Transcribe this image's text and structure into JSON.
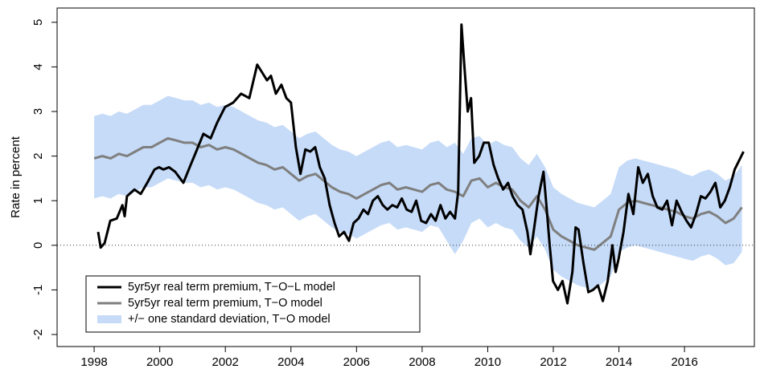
{
  "chart_data": {
    "type": "line",
    "y_label": "Rate in percent",
    "xlim": [
      1996.87,
      2018.13
    ],
    "ylim": [
      -2.27,
      5.32
    ],
    "xticks": [
      1998,
      2000,
      2002,
      2004,
      2006,
      2008,
      2010,
      2012,
      2014,
      2016
    ],
    "yticks": [
      -2,
      -1,
      0,
      1,
      2,
      3,
      4,
      5
    ],
    "reference_line": {
      "value": 0,
      "style": "dotted"
    },
    "legend": "bottom-left",
    "series": [
      {
        "name": "5yr5yr real term premium, T−O−L model",
        "color": "#000000",
        "x": [
          1998.12,
          1998.2,
          1998.32,
          1998.49,
          1998.69,
          1998.86,
          1998.93,
          1999.0,
          1999.23,
          1999.42,
          1999.62,
          1999.84,
          1999.98,
          2000.11,
          2000.28,
          2000.47,
          2000.72,
          2000.94,
          2001.11,
          2001.33,
          2001.55,
          2001.75,
          2001.99,
          2002.24,
          2002.48,
          2002.73,
          2002.97,
          2003.1,
          2003.27,
          2003.39,
          2003.54,
          2003.71,
          2003.86,
          2004.0,
          2004.15,
          2004.29,
          2004.44,
          2004.59,
          2004.74,
          2004.88,
          2005.03,
          2005.18,
          2005.33,
          2005.47,
          2005.62,
          2005.77,
          2005.91,
          2006.06,
          2006.21,
          2006.35,
          2006.5,
          2006.65,
          2006.8,
          2006.94,
          2007.09,
          2007.24,
          2007.38,
          2007.53,
          2007.68,
          2007.82,
          2007.97,
          2008.12,
          2008.27,
          2008.41,
          2008.56,
          2008.71,
          2008.85,
          2009.0,
          2009.1,
          2009.2,
          2009.29,
          2009.39,
          2009.49,
          2009.59,
          2009.74,
          2009.88,
          2010.03,
          2010.18,
          2010.32,
          2010.47,
          2010.62,
          2010.76,
          2010.91,
          2011.06,
          2011.21,
          2011.3,
          2011.4,
          2011.55,
          2011.7,
          2011.79,
          2011.89,
          2011.99,
          2012.14,
          2012.28,
          2012.43,
          2012.58,
          2012.68,
          2012.77,
          2012.92,
          2013.07,
          2013.21,
          2013.36,
          2013.51,
          2013.66,
          2013.8,
          2013.9,
          2013.99,
          2014.14,
          2014.29,
          2014.44,
          2014.59,
          2014.73,
          2014.88,
          2015.03,
          2015.17,
          2015.32,
          2015.47,
          2015.62,
          2015.76,
          2015.91,
          2016.06,
          2016.2,
          2016.35,
          2016.5,
          2016.64,
          2016.79,
          2016.94,
          2017.09,
          2017.23,
          2017.38,
          2017.53,
          2017.8
        ],
        "values": [
          0.3,
          -0.05,
          0.05,
          0.55,
          0.6,
          0.9,
          0.65,
          1.1,
          1.25,
          1.15,
          1.4,
          1.7,
          1.75,
          1.7,
          1.75,
          1.65,
          1.4,
          1.8,
          2.1,
          2.5,
          2.4,
          2.75,
          3.1,
          3.2,
          3.4,
          3.3,
          4.05,
          3.9,
          3.7,
          3.8,
          3.4,
          3.6,
          3.3,
          3.2,
          2.2,
          1.6,
          2.15,
          2.1,
          2.2,
          1.75,
          1.5,
          0.9,
          0.5,
          0.2,
          0.3,
          0.1,
          0.5,
          0.6,
          0.8,
          0.7,
          1.0,
          1.1,
          0.9,
          0.8,
          0.9,
          0.85,
          1.05,
          0.8,
          0.75,
          1.0,
          0.55,
          0.5,
          0.7,
          0.55,
          0.9,
          0.6,
          0.75,
          0.6,
          1.2,
          4.95,
          4.0,
          3.0,
          3.3,
          1.85,
          2.0,
          2.3,
          2.3,
          1.8,
          1.5,
          1.25,
          1.4,
          1.1,
          0.9,
          0.8,
          0.3,
          -0.2,
          0.3,
          1.1,
          1.65,
          0.9,
          0.0,
          -0.8,
          -1.0,
          -0.8,
          -1.3,
          -0.6,
          0.4,
          0.35,
          -0.4,
          -1.05,
          -1.0,
          -0.9,
          -1.25,
          -0.8,
          0.0,
          -0.6,
          -0.3,
          0.3,
          1.15,
          0.7,
          1.75,
          1.4,
          1.6,
          1.1,
          0.85,
          0.8,
          1.0,
          0.45,
          1.0,
          0.75,
          0.55,
          0.4,
          0.7,
          1.1,
          1.05,
          1.2,
          1.4,
          0.85,
          1.0,
          1.3,
          1.7,
          2.1
        ]
      },
      {
        "name": "5yr5yr real term premium, T−O model",
        "color": "#7f7f7f",
        "x": [
          1998.0,
          1998.25,
          1998.5,
          1998.75,
          1999.0,
          1999.25,
          1999.5,
          1999.75,
          2000.0,
          2000.25,
          2000.5,
          2000.75,
          2001.0,
          2001.25,
          2001.5,
          2001.75,
          2002.0,
          2002.25,
          2002.5,
          2002.75,
          2003.0,
          2003.25,
          2003.5,
          2003.75,
          2004.0,
          2004.25,
          2004.5,
          2004.75,
          2005.0,
          2005.25,
          2005.5,
          2005.75,
          2006.0,
          2006.25,
          2006.5,
          2006.75,
          2007.0,
          2007.25,
          2007.5,
          2007.75,
          2008.0,
          2008.25,
          2008.5,
          2008.75,
          2009.0,
          2009.25,
          2009.5,
          2009.75,
          2010.0,
          2010.25,
          2010.5,
          2010.75,
          2011.0,
          2011.25,
          2011.5,
          2011.75,
          2012.0,
          2012.25,
          2012.5,
          2012.75,
          2013.0,
          2013.25,
          2013.5,
          2013.75,
          2014.0,
          2014.25,
          2014.5,
          2014.75,
          2015.0,
          2015.25,
          2015.5,
          2015.75,
          2016.0,
          2016.25,
          2016.5,
          2016.75,
          2017.0,
          2017.25,
          2017.5,
          2017.75
        ],
        "values": [
          1.95,
          2.0,
          1.95,
          2.05,
          2.0,
          2.1,
          2.2,
          2.2,
          2.3,
          2.4,
          2.35,
          2.3,
          2.3,
          2.2,
          2.25,
          2.15,
          2.2,
          2.15,
          2.05,
          1.95,
          1.85,
          1.8,
          1.7,
          1.75,
          1.6,
          1.45,
          1.55,
          1.6,
          1.45,
          1.3,
          1.2,
          1.15,
          1.05,
          1.15,
          1.25,
          1.35,
          1.4,
          1.25,
          1.3,
          1.25,
          1.2,
          1.35,
          1.4,
          1.25,
          1.2,
          1.1,
          1.45,
          1.5,
          1.3,
          1.4,
          1.3,
          1.25,
          1.0,
          0.85,
          1.1,
          0.8,
          0.35,
          0.2,
          0.1,
          0.0,
          -0.05,
          -0.1,
          0.05,
          0.2,
          0.8,
          0.95,
          1.0,
          0.95,
          0.9,
          0.85,
          0.8,
          0.75,
          0.65,
          0.6,
          0.7,
          0.75,
          0.65,
          0.5,
          0.6,
          0.85
        ]
      },
      {
        "name": "+/− one standard deviation, T−O model",
        "color": "#c6dbf8",
        "x": [
          1998.0,
          1998.25,
          1998.5,
          1998.75,
          1999.0,
          1999.25,
          1999.5,
          1999.75,
          2000.0,
          2000.25,
          2000.5,
          2000.75,
          2001.0,
          2001.25,
          2001.5,
          2001.75,
          2002.0,
          2002.25,
          2002.5,
          2002.75,
          2003.0,
          2003.25,
          2003.5,
          2003.75,
          2004.0,
          2004.25,
          2004.5,
          2004.75,
          2005.0,
          2005.25,
          2005.5,
          2005.75,
          2006.0,
          2006.25,
          2006.5,
          2006.75,
          2007.0,
          2007.25,
          2007.5,
          2007.75,
          2008.0,
          2008.25,
          2008.5,
          2008.75,
          2009.0,
          2009.25,
          2009.5,
          2009.75,
          2010.0,
          2010.25,
          2010.5,
          2010.75,
          2011.0,
          2011.25,
          2011.5,
          2011.75,
          2012.0,
          2012.25,
          2012.5,
          2012.75,
          2013.0,
          2013.25,
          2013.5,
          2013.75,
          2014.0,
          2014.25,
          2014.5,
          2014.75,
          2015.0,
          2015.25,
          2015.5,
          2015.75,
          2016.0,
          2016.25,
          2016.5,
          2016.75,
          2017.0,
          2017.25,
          2017.5,
          2017.75
        ],
        "lower": [
          1.05,
          1.1,
          1.05,
          1.15,
          1.1,
          1.2,
          1.3,
          1.3,
          1.4,
          1.5,
          1.45,
          1.4,
          1.4,
          1.3,
          1.35,
          1.25,
          1.3,
          1.25,
          1.15,
          1.05,
          0.95,
          0.9,
          0.8,
          0.85,
          0.7,
          0.55,
          0.65,
          0.7,
          0.55,
          0.4,
          0.3,
          0.25,
          0.15,
          0.25,
          0.35,
          0.45,
          0.5,
          0.35,
          0.4,
          0.35,
          0.3,
          0.45,
          0.4,
          0.1,
          -0.2,
          0.1,
          0.5,
          0.6,
          0.4,
          0.5,
          0.4,
          0.35,
          0.1,
          -0.05,
          0.2,
          -0.1,
          -0.55,
          -0.7,
          -0.8,
          -0.9,
          -0.95,
          -1.0,
          -0.85,
          -0.7,
          -0.15,
          -0.05,
          0.0,
          -0.05,
          -0.1,
          -0.15,
          -0.2,
          -0.25,
          -0.3,
          -0.35,
          -0.25,
          -0.2,
          -0.3,
          -0.45,
          -0.4,
          -0.15
        ],
        "upper": [
          2.9,
          2.95,
          2.9,
          3.0,
          2.95,
          3.05,
          3.15,
          3.15,
          3.25,
          3.35,
          3.3,
          3.25,
          3.25,
          3.15,
          3.2,
          3.1,
          3.15,
          3.1,
          3.0,
          2.9,
          2.8,
          2.75,
          2.65,
          2.7,
          2.55,
          2.4,
          2.5,
          2.55,
          2.4,
          2.25,
          2.15,
          2.1,
          2.0,
          2.1,
          2.2,
          2.3,
          2.35,
          2.2,
          2.25,
          2.2,
          2.15,
          2.3,
          2.35,
          2.2,
          2.3,
          2.05,
          2.4,
          2.45,
          2.25,
          2.35,
          2.25,
          2.2,
          1.95,
          1.8,
          2.05,
          1.75,
          1.3,
          1.15,
          1.05,
          0.95,
          0.9,
          0.85,
          1.0,
          1.15,
          1.75,
          1.9,
          1.95,
          1.9,
          1.85,
          1.8,
          1.75,
          1.7,
          1.6,
          1.55,
          1.65,
          1.7,
          1.6,
          1.45,
          1.55,
          1.8
        ]
      }
    ]
  }
}
